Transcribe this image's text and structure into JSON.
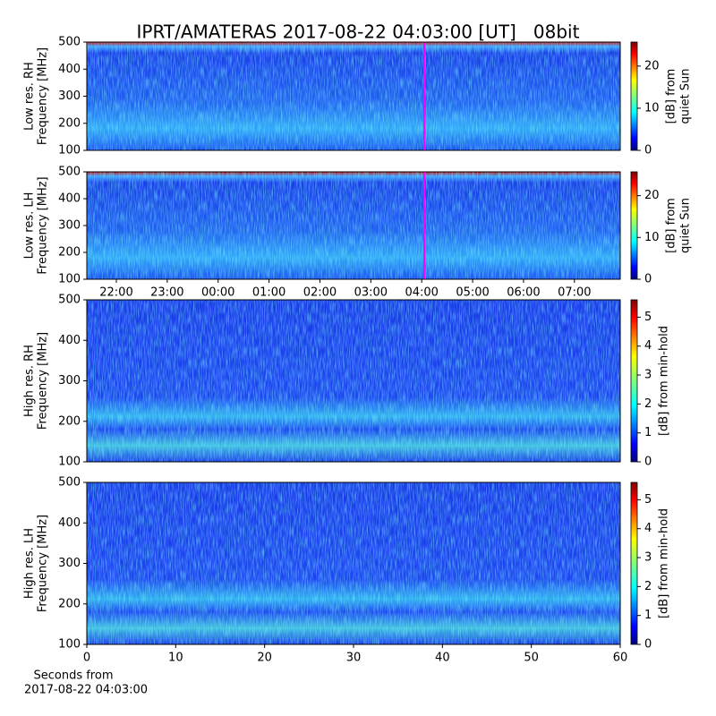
{
  "title": "IPRT/AMATERAS 2017-08-22 04:03:00 [UT]   08bit",
  "xlabel": [
    "Seconds from",
    "2017-08-22 04:03:00"
  ],
  "chart_data": [
    {
      "type": "heatmap",
      "ylabel": [
        "Low res. RH",
        "Frequency [MHz]"
      ],
      "ylim": [
        100,
        500
      ],
      "yticks": [
        100,
        200,
        300,
        400,
        500
      ],
      "xlim": [
        21.42,
        31.9
      ],
      "marker": 28.05,
      "marker_color": "#ff00ff",
      "clabel": [
        "[dB] from",
        "quiet Sun"
      ],
      "clim": [
        0,
        25.7
      ],
      "cticks": [
        0,
        10,
        20
      ]
    },
    {
      "type": "heatmap",
      "ylabel": [
        "Low res. LH",
        "Frequency [MHz]"
      ],
      "ylim": [
        100,
        500
      ],
      "yticks": [
        100,
        200,
        300,
        400,
        500
      ],
      "xlim": [
        21.42,
        31.9
      ],
      "marker": 28.05,
      "marker_color": "#ff00ff",
      "xticks": [
        {
          "value": 22,
          "label": "22:00"
        },
        {
          "value": 23,
          "label": "23:00"
        },
        {
          "value": 24,
          "label": "00:00"
        },
        {
          "value": 25,
          "label": "01:00"
        },
        {
          "value": 26,
          "label": "02:00"
        },
        {
          "value": 27,
          "label": "03:00"
        },
        {
          "value": 28,
          "label": "04:00"
        },
        {
          "value": 29,
          "label": "05:00"
        },
        {
          "value": 30,
          "label": "06:00"
        },
        {
          "value": 31,
          "label": "07:00"
        }
      ],
      "clabel": [
        "[dB] from",
        "quiet Sun"
      ],
      "clim": [
        0,
        25.7
      ],
      "cticks": [
        0,
        10,
        20
      ]
    },
    {
      "type": "heatmap",
      "ylabel": [
        "High res. RH",
        "Frequency [MHz]"
      ],
      "ylim": [
        100,
        500
      ],
      "yticks": [
        100,
        200,
        300,
        400,
        500
      ],
      "xlim": [
        0,
        60
      ],
      "clabel": [
        "[dB] from min-hold"
      ],
      "clim": [
        0,
        5.6
      ],
      "cticks": [
        0,
        1,
        2,
        3,
        4,
        5
      ]
    },
    {
      "type": "heatmap",
      "ylabel": [
        "High res. LH",
        "Frequency [MHz]"
      ],
      "ylim": [
        100,
        500
      ],
      "yticks": [
        100,
        200,
        300,
        400,
        500
      ],
      "xlim": [
        0,
        60
      ],
      "xticks": [
        0,
        10,
        20,
        30,
        40,
        50,
        60
      ],
      "clabel": [
        "[dB] from min-hold"
      ],
      "clim": [
        0,
        5.6
      ],
      "cticks": [
        0,
        1,
        2,
        3,
        4,
        5
      ]
    }
  ]
}
